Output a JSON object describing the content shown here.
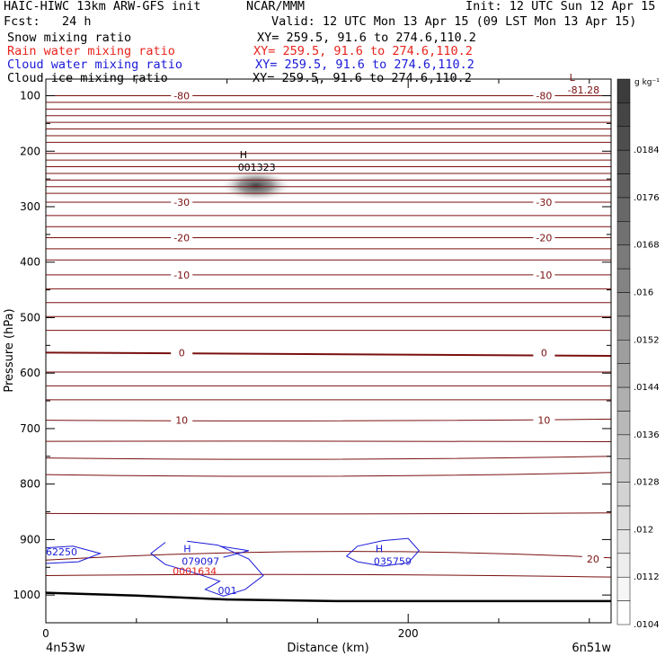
{
  "header": {
    "title_left": "HAIC-HIWC 13km ARW-GFS init",
    "title_center": "NCAR/MMM",
    "init": "Init: 12 UTC Sun 12 Apr 15",
    "fcst": "Fcst:   24 h",
    "valid": "Valid: 12 UTC Mon 13 Apr 15 (09 LST Mon 13 Apr 15)",
    "fields": [
      {
        "name": "Snow mixing ratio",
        "xy": "XY= 259.5, 91.6 to 274.6,110.2",
        "color": "#000000"
      },
      {
        "name": "Rain water mixing ratio",
        "xy": "XY= 259.5, 91.6 to 274.6,110.2",
        "color": "#e8241d"
      },
      {
        "name": "Cloud water mixing ratio",
        "xy": "XY= 259.5, 91.6 to 274.6,110.2",
        "color": "#1a1ad8"
      },
      {
        "name": "Cloud ice mixing ratio",
        "xy": "XY= 259.5, 91.6 to 274.6,110.2",
        "color": "#000000"
      }
    ]
  },
  "chart_data": {
    "type": "cross-section",
    "xlabel": "Distance (km)",
    "ylabel": "Pressure (hPa)",
    "xlim": [
      0,
      312
    ],
    "ylim": [
      1050,
      70
    ],
    "x_ticks": [
      0,
      200
    ],
    "y_ticks": [
      100,
      200,
      300,
      400,
      500,
      600,
      700,
      800,
      900,
      1000
    ],
    "endpoint_labels": {
      "left": "4n53w",
      "right": "6n51w"
    },
    "colorbar": {
      "unit": "g kg⁻¹",
      "labels": [
        ".0184",
        ".0176",
        ".0168",
        ".016",
        ".0152",
        ".0144",
        ".0136",
        ".0128",
        ".012",
        ".0112",
        ".0104"
      ],
      "level_count": 23,
      "color_dark": "#3c3c3c",
      "color_light": "#ffffff"
    },
    "isotherms": [
      {
        "label": "-80",
        "anchor": 100,
        "values": [
          100,
          100,
          100
        ]
      },
      {
        "label": "-30",
        "anchor": 292,
        "values": [
          292,
          292,
          292
        ]
      },
      {
        "label": "-20",
        "anchor": 356,
        "values": [
          356,
          356,
          356
        ]
      },
      {
        "label": "-10",
        "anchor": 423,
        "values": [
          423,
          423,
          423
        ]
      },
      {
        "label": "0",
        "anchor": 563,
        "values": [
          563,
          567,
          569
        ]
      },
      {
        "label": "10",
        "anchor": 685,
        "values": [
          685,
          688,
          683
        ]
      },
      {
        "label": "20",
        "anchor": 935,
        "values": [
          937,
          908,
          933
        ]
      }
    ],
    "temperature_color": "#7a1010",
    "extrema": [
      {
        "type": "H",
        "value": "001323",
        "x": 106,
        "p": 232,
        "color": "#000000"
      },
      {
        "type": "L",
        "value": "-81.28",
        "x": 288,
        "p": 93,
        "color": "#7a1010"
      },
      {
        "type": "H",
        "value": "079097",
        "x": 75,
        "p": 942,
        "color": "#1a1ad8"
      },
      {
        "type": "H",
        "value": "035759",
        "x": 181,
        "p": 942,
        "color": "#1a1ad8"
      },
      {
        "value": "62250",
        "x": 0,
        "p": 925,
        "color": "#1a1ad8"
      },
      {
        "value": "0001634",
        "x": 70,
        "p": 960,
        "color": "#e8241d"
      },
      {
        "value": "001",
        "x": 95,
        "p": 995,
        "color": "#1a1ad8"
      }
    ],
    "snow_maximum": {
      "x": 116,
      "p": 262,
      "value": 0.01323
    },
    "surface_pressure": [
      {
        "x": 0,
        "p": 996
      },
      {
        "x": 50,
        "p": 1001
      },
      {
        "x": 100,
        "p": 1008
      },
      {
        "x": 160,
        "p": 1011
      },
      {
        "x": 312,
        "p": 1011
      }
    ],
    "grid": false,
    "legend": "right colorbar"
  }
}
